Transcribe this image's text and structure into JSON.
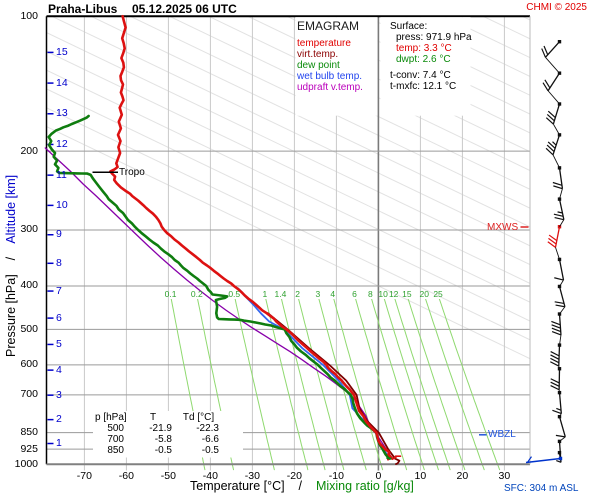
{
  "header": {
    "station": "Praha-Libus",
    "datetime": "05.12.2025 06 UTC",
    "copyright": "CHMI © 2025"
  },
  "legend": {
    "heading": "EMAGRAM",
    "entries": [
      {
        "label": "temperature",
        "color": "#e00000"
      },
      {
        "label": "virt.temp.",
        "color": "#8b0000"
      },
      {
        "label": "dew point",
        "color": "#0a8a0a"
      },
      {
        "label": "wet bulb temp.",
        "color": "#2244ee"
      },
      {
        "label": "udpraft v.temp.",
        "color": "#bb00bb"
      }
    ]
  },
  "surface_box": {
    "heading": "Surface:",
    "press_label": "press: 971.9 hPa",
    "temp_label": "temp: 3.3 °C",
    "dwpt_label": "dwpt: 2.6 °C",
    "tconv_label": "t-conv: 7.4 °C",
    "tmxfc_label": "t-mxfc: 12.1 °C"
  },
  "markers": {
    "tropo": "Tropo",
    "mxws": "MXWS",
    "wbzl": "WBZL",
    "sfc": "SFC: 304 m ASL"
  },
  "axis_titles": {
    "x_temperature": "Temperature [°C]",
    "x_separator": "/",
    "x_mixing": "Mixing ratio [g/kg]",
    "y_pressure": "Pressure [hPa]",
    "y_separator": "/",
    "y_altitude": "Altitude [km]"
  },
  "data_table": {
    "headers": [
      "p [hPa]",
      "T",
      "Td [°C]"
    ],
    "rows": [
      [
        "500",
        "-21.9",
        "-22.3"
      ],
      [
        "700",
        "-5.8",
        "-6.6"
      ],
      [
        "850",
        "-0.5",
        "-0.5"
      ]
    ]
  },
  "chart_data": {
    "type": "line",
    "title": "Emagram aerological sounding, Praha-Libus 05.12.2025 06 UTC",
    "xlabel": "Temperature [°C]",
    "ylabel": "Pressure [hPa]",
    "xlim": [
      -79,
      36
    ],
    "ylim_pressure_hpa": [
      1000,
      100
    ],
    "pressure_ticks": [
      100,
      200,
      300,
      400,
      500,
      600,
      700,
      850,
      925,
      1000
    ],
    "altitude_ticks_km": [
      1,
      2,
      3,
      4,
      5,
      6,
      7,
      8,
      9,
      10,
      11,
      12,
      13,
      14,
      15
    ],
    "temp_ticks_c": [
      -70,
      -60,
      -50,
      -40,
      -30,
      -20,
      -10,
      0,
      10,
      20,
      30
    ],
    "mixing_ratio_labels_gkg": [
      0.1,
      0.2,
      0.5,
      1,
      1.4,
      2,
      3,
      4,
      6,
      8,
      10,
      12,
      15,
      20,
      25
    ],
    "mixing_ratio_label_pressure_hpa": 419,
    "tropopause_pressure_hpa": 222,
    "mxws_pressure_hpa": 295,
    "wbzl_pressure_hpa": 870,
    "surface": {
      "pressure_hpa": 971.9,
      "temp_c": 3.3,
      "dwpt_c": 2.6,
      "tconv_c": 7.4,
      "tmxfc_c": 12.1,
      "elevation": "304 m ASL"
    },
    "series": [
      {
        "name": "temperature",
        "color": "#dd1111",
        "width": 2.6,
        "points_p_t": [
          [
            100,
            -60.9
          ],
          [
            106,
            -60.2
          ],
          [
            112,
            -61.0
          ],
          [
            118,
            -60.4
          ],
          [
            124,
            -61.2
          ],
          [
            130,
            -60.6
          ],
          [
            136,
            -61.4
          ],
          [
            142,
            -60.8
          ],
          [
            148,
            -61.3
          ],
          [
            154,
            -60.7
          ],
          [
            160,
            -61.6
          ],
          [
            166,
            -61.1
          ],
          [
            172,
            -61.8
          ],
          [
            178,
            -61.3
          ],
          [
            184,
            -62.0
          ],
          [
            190,
            -61.4
          ],
          [
            196,
            -61.9
          ],
          [
            202,
            -61.5
          ],
          [
            208,
            -62.0
          ],
          [
            213,
            -62.4
          ],
          [
            217,
            -62.1
          ],
          [
            220,
            -62.9
          ],
          [
            222,
            -63.8
          ],
          [
            225,
            -63.3
          ],
          [
            228,
            -62.7
          ],
          [
            232,
            -62.9
          ],
          [
            236,
            -62.3
          ],
          [
            241,
            -61.3
          ],
          [
            246,
            -60.0
          ],
          [
            252,
            -58.6
          ],
          [
            258,
            -57.2
          ],
          [
            264,
            -56.0
          ],
          [
            272,
            -54.5
          ],
          [
            280,
            -53.0
          ],
          [
            290,
            -51.9
          ],
          [
            300,
            -51.0
          ],
          [
            310,
            -49.3
          ],
          [
            320,
            -47.6
          ],
          [
            330,
            -45.9
          ],
          [
            340,
            -44.2
          ],
          [
            350,
            -42.5
          ],
          [
            360,
            -40.8
          ],
          [
            370,
            -39.2
          ],
          [
            380,
            -37.6
          ],
          [
            390,
            -36.0
          ],
          [
            400,
            -34.4
          ],
          [
            420,
            -31.8
          ],
          [
            440,
            -29.2
          ],
          [
            460,
            -26.6
          ],
          [
            480,
            -24.3
          ],
          [
            500,
            -21.9
          ],
          [
            520,
            -19.9
          ],
          [
            540,
            -18.0
          ],
          [
            560,
            -16.1
          ],
          [
            580,
            -14.2
          ],
          [
            600,
            -12.4
          ],
          [
            620,
            -11.1
          ],
          [
            640,
            -9.6
          ],
          [
            660,
            -8.2
          ],
          [
            680,
            -6.9
          ],
          [
            700,
            -5.8
          ],
          [
            720,
            -5.4
          ],
          [
            740,
            -5.0
          ],
          [
            760,
            -4.6
          ],
          [
            780,
            -3.6
          ],
          [
            800,
            -3.0
          ],
          [
            820,
            -2.1
          ],
          [
            835,
            -1.3
          ],
          [
            850,
            -0.5
          ],
          [
            870,
            -0.2
          ],
          [
            885,
            0.0
          ],
          [
            900,
            0.4
          ],
          [
            910,
            0.9
          ],
          [
            925,
            1.6
          ],
          [
            940,
            2.6
          ],
          [
            950,
            2.4
          ],
          [
            960,
            2.8
          ],
          [
            971.9,
            3.3
          ]
        ]
      },
      {
        "name": "virt.temp.",
        "color": "#7b0000",
        "width": 1.8,
        "points_p_t": [
          [
            460,
            -26.3
          ],
          [
            500,
            -21.6
          ],
          [
            550,
            -16.6
          ],
          [
            600,
            -11.7
          ],
          [
            650,
            -7.7
          ],
          [
            700,
            -5.2
          ],
          [
            750,
            -4.5
          ],
          [
            800,
            -2.7
          ],
          [
            850,
            0.1
          ],
          [
            925,
            2.3
          ],
          [
            971.9,
            4.0
          ],
          [
            982,
            5.0
          ],
          [
            995,
            4.6
          ],
          [
            999,
            4.2
          ]
        ]
      },
      {
        "name": "dew point",
        "color": "#0f7d0f",
        "width": 2.6,
        "points_p_t": [
          [
            167,
            -69.0
          ],
          [
            168.5,
            -69.5
          ],
          [
            171,
            -71.0
          ],
          [
            174,
            -73.0
          ],
          [
            177,
            -75.0
          ],
          [
            180,
            -76.8
          ],
          [
            183,
            -77.8
          ],
          [
            186,
            -78.5
          ],
          [
            190,
            -77.9
          ],
          [
            194,
            -78.4
          ],
          [
            198,
            -77.8
          ],
          [
            202,
            -77.0
          ],
          [
            206,
            -77.3
          ],
          [
            210,
            -76.5
          ],
          [
            214,
            -77.0
          ],
          [
            218,
            -76.2
          ],
          [
            222,
            -76.5
          ],
          [
            223.8,
            -76.0
          ],
          [
            224.5,
            -69.3
          ],
          [
            226,
            -68.5
          ],
          [
            230,
            -68.0
          ],
          [
            234,
            -67.4
          ],
          [
            240,
            -66.5
          ],
          [
            246,
            -65.6
          ],
          [
            252,
            -64.7
          ],
          [
            260,
            -63.4
          ],
          [
            270,
            -61.8
          ],
          [
            280,
            -60.2
          ],
          [
            290,
            -58.7
          ],
          [
            300,
            -57.2
          ],
          [
            310,
            -55.4
          ],
          [
            320,
            -53.6
          ],
          [
            330,
            -51.8
          ],
          [
            340,
            -50.0
          ],
          [
            350,
            -48.5
          ],
          [
            360,
            -47.0
          ],
          [
            370,
            -45.5
          ],
          [
            380,
            -44.0
          ],
          [
            390,
            -42.5
          ],
          [
            400,
            -41.0
          ],
          [
            408,
            -40.5
          ],
          [
            412,
            -40.0
          ],
          [
            418,
            -39.5
          ],
          [
            420,
            -37.5
          ],
          [
            422,
            -36.0
          ],
          [
            425,
            -36.5
          ],
          [
            430,
            -38.7
          ],
          [
            445,
            -38.4
          ],
          [
            460,
            -38.6
          ],
          [
            470,
            -38.4
          ],
          [
            474,
            -38.0
          ],
          [
            476,
            -33.0
          ],
          [
            480,
            -30.5
          ],
          [
            485,
            -28.0
          ],
          [
            490,
            -25.5
          ],
          [
            500,
            -22.3
          ],
          [
            520,
            -21.2
          ],
          [
            540,
            -20.0
          ],
          [
            560,
            -18.4
          ],
          [
            580,
            -16.4
          ],
          [
            600,
            -14.4
          ],
          [
            620,
            -12.8
          ],
          [
            640,
            -11.4
          ],
          [
            660,
            -9.7
          ],
          [
            680,
            -8.0
          ],
          [
            700,
            -6.6
          ],
          [
            730,
            -6.0
          ],
          [
            750,
            -5.6
          ],
          [
            770,
            -5.1
          ],
          [
            790,
            -4.3
          ],
          [
            810,
            -3.2
          ],
          [
            830,
            -1.8
          ],
          [
            850,
            -0.5
          ],
          [
            870,
            -0.3
          ],
          [
            900,
            0.2
          ],
          [
            925,
            1.0
          ],
          [
            950,
            1.7
          ],
          [
            971.9,
            2.6
          ]
        ]
      },
      {
        "name": "wet bulb temp.",
        "color": "#3366ee",
        "width": 1.8,
        "points_p_t": [
          [
            405,
            -33.4
          ],
          [
            410,
            -32.8
          ],
          [
            420,
            -31.9
          ],
          [
            440,
            -29.8
          ],
          [
            460,
            -28.0
          ],
          [
            480,
            -26.0
          ],
          [
            500,
            -22.5
          ],
          [
            550,
            -18.2
          ],
          [
            600,
            -13.2
          ],
          [
            650,
            -9.5
          ],
          [
            700,
            -6.8
          ],
          [
            750,
            -6.2
          ],
          [
            800,
            -3.4
          ],
          [
            850,
            -0.5
          ],
          [
            900,
            0.3
          ],
          [
            925,
            1.2
          ],
          [
            950,
            2.0
          ],
          [
            971.9,
            2.9
          ]
        ]
      },
      {
        "name": "udpraft v.temp.",
        "color": "#8800aa",
        "width": 1.3,
        "points_p_t": [
          [
            196.9,
            -79.3
          ],
          [
            208.3,
            -76.5
          ],
          [
            221.6,
            -73.4
          ],
          [
            236.9,
            -70.3
          ],
          [
            251.9,
            -67.2
          ],
          [
            268.6,
            -64.1
          ],
          [
            286.4,
            -61.0
          ],
          [
            305.4,
            -57.9
          ],
          [
            324.9,
            -54.9
          ],
          [
            345.6,
            -51.8
          ],
          [
            366.6,
            -48.7
          ],
          [
            387.9,
            -45.6
          ],
          [
            409.5,
            -42.5
          ],
          [
            431.2,
            -39.4
          ],
          [
            452.9,
            -36.3
          ],
          [
            474.3,
            -33.2
          ],
          [
            495.7,
            -30.1
          ],
          [
            516.6,
            -27.0
          ],
          [
            538.3,
            -24.0
          ],
          [
            560.8,
            -21.0
          ],
          [
            584.3,
            -18.2
          ],
          [
            608.8,
            -15.5
          ],
          [
            634.3,
            -12.7
          ],
          [
            660.9,
            -10.1
          ],
          [
            688.6,
            -7.6
          ],
          [
            717.6,
            -5.6
          ],
          [
            747.8,
            -4.3
          ],
          [
            779.2,
            -3.0
          ],
          [
            812.0,
            -2.2
          ],
          [
            846.1,
            -0.9
          ],
          [
            884.1,
            0.5
          ],
          [
            926.2,
            1.9
          ],
          [
            971.9,
            3.3
          ]
        ]
      }
    ],
    "winds": [
      {
        "p": 114,
        "feathers": 2,
        "color": "#111111",
        "lean": 42
      },
      {
        "p": 134,
        "feathers": 2,
        "color": "#111111",
        "lean": 33
      },
      {
        "p": 157,
        "feathers": 3,
        "color": "#111111",
        "lean": 17
      },
      {
        "p": 184,
        "feathers": 3.5,
        "color": "#111111",
        "lean": 18
      },
      {
        "p": 218,
        "feathers": 2,
        "color": "#111111",
        "lean": -8
      },
      {
        "p": 256,
        "feathers": 2.5,
        "color": "#111111",
        "lean": -12
      },
      {
        "p": 295,
        "feathers": 3,
        "color": "#dd1111",
        "lean": 11
      },
      {
        "p": 349,
        "feathers": 1,
        "color": "#111111",
        "lean": -11
      },
      {
        "p": 401,
        "feathers": 2,
        "color": "#111111",
        "lean": -15
      },
      {
        "p": 462,
        "feathers": 4,
        "color": "#111111",
        "lean": -4
      },
      {
        "p": 542,
        "feathers": 4,
        "color": "#111111",
        "lean": 2
      },
      {
        "p": 612,
        "feathers": 3,
        "color": "#111111",
        "lean": 1
      },
      {
        "p": 692,
        "feathers": 1.5,
        "color": "#111111",
        "lean": -5
      },
      {
        "p": 783,
        "feathers": 1,
        "color": "#111111",
        "lean": -16
      },
      {
        "p": 889,
        "feathers": 0.5,
        "color": "#111111",
        "lean": -4
      },
      {
        "p": 942,
        "feathers": 0,
        "color": "#111111",
        "lean": -8,
        "len": 6
      }
    ],
    "surface_wind": {
      "color": "#0033cc",
      "feathers": 0.5
    }
  }
}
